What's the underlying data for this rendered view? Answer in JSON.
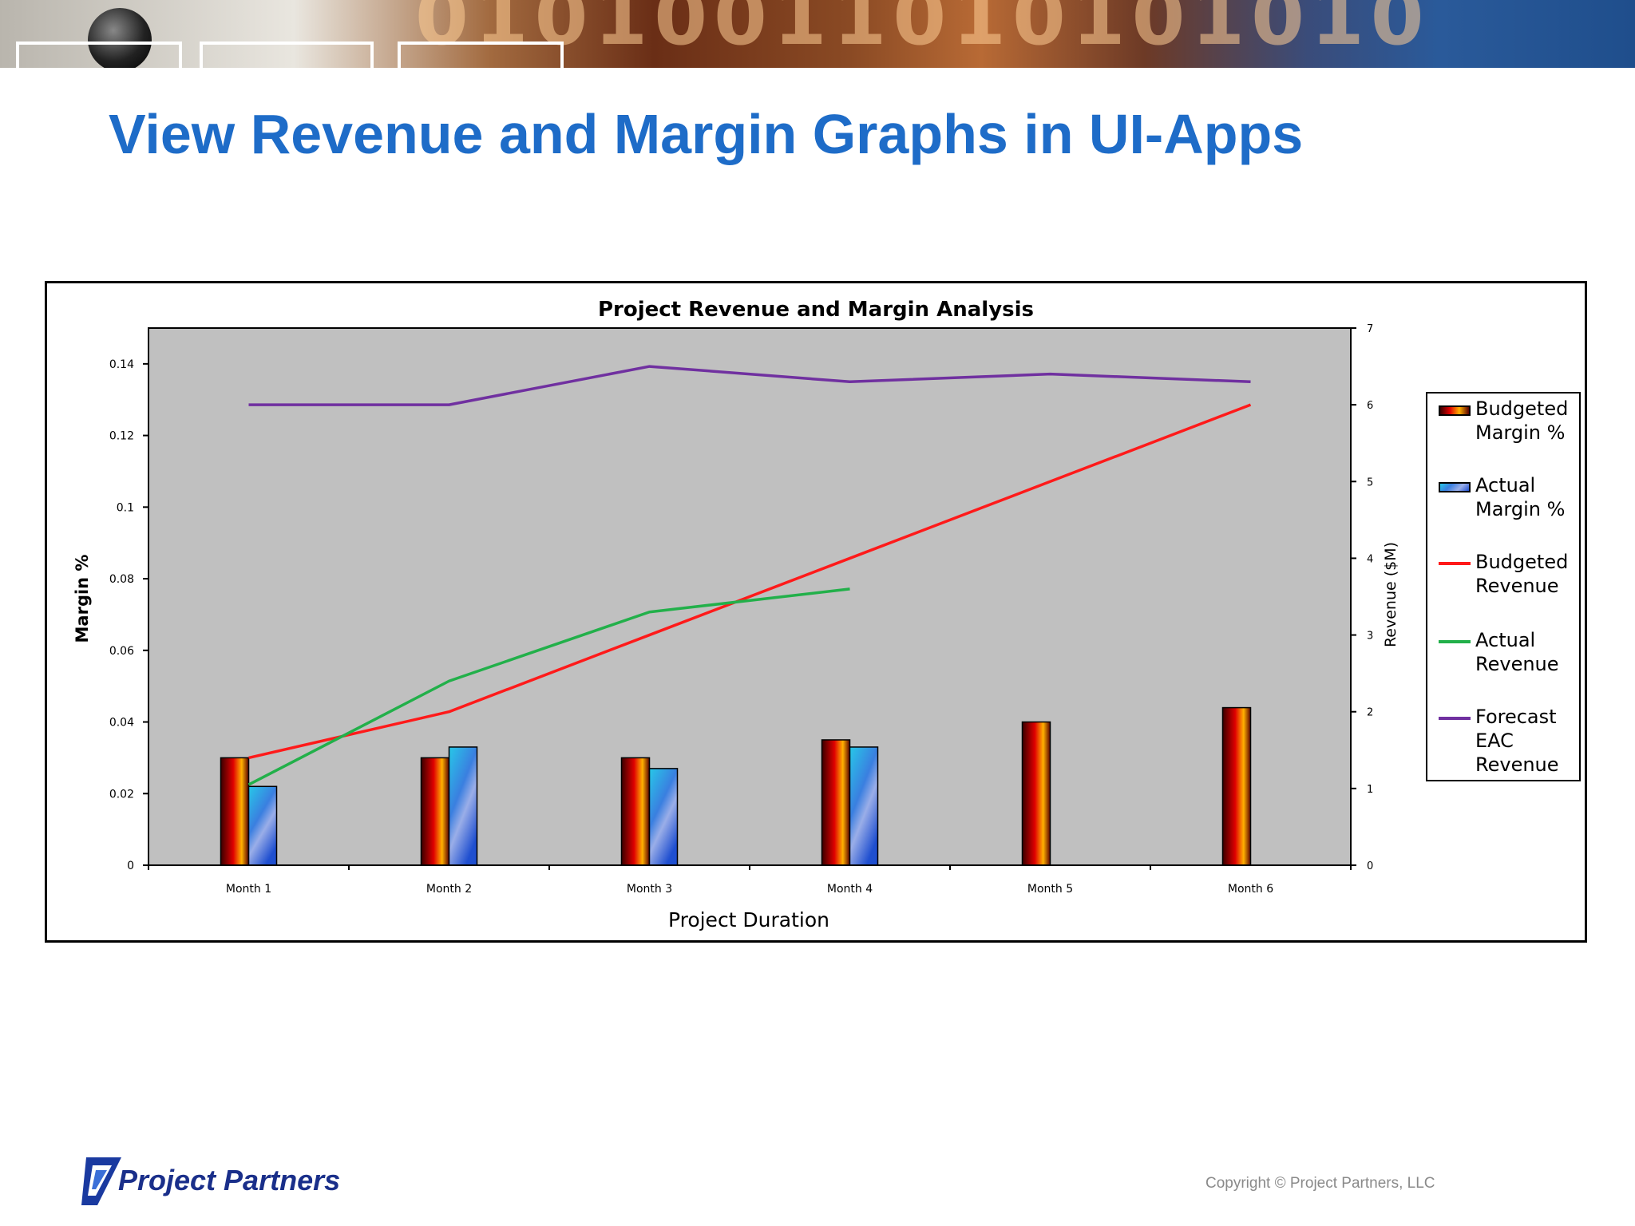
{
  "banner": {
    "digits": "01010011010101010"
  },
  "slide": {
    "title": "View Revenue and Margin Graphs in UI-Apps",
    "copyright": "Copyright © Project Partners, LLC",
    "logo_text": "Project Partners"
  },
  "colors": {
    "title": "#1e6cc8",
    "plot_bg": "#c0c0c0",
    "budgeted_revenue": "#ff1a1a",
    "actual_revenue": "#22b04a",
    "forecast_eac_revenue": "#7030a0",
    "budgeted_margin": "#c00000",
    "actual_margin": "#2f7fe0"
  },
  "chart_data": {
    "type": "bar",
    "title": "Project Revenue and Margin Analysis",
    "xlabel": "Project Duration",
    "ylabel": "Margin %",
    "ylabel_right": "Revenue ($M)",
    "categories": [
      "Month 1",
      "Month 2",
      "Month 3",
      "Month 4",
      "Month 5",
      "Month 6"
    ],
    "ylim": [
      0,
      0.15
    ],
    "yticks": [
      "0",
      "0.02",
      "0.04",
      "0.06",
      "0.08",
      "0.1",
      "0.12",
      "0.14"
    ],
    "ylim_right": [
      0,
      7
    ],
    "yticks_right": [
      "0",
      "1",
      "2",
      "3",
      "4",
      "5",
      "6",
      "7"
    ],
    "legend_position": "right",
    "grid": false,
    "series": [
      {
        "name": "Budgeted Margin %",
        "type": "bar",
        "axis": "left",
        "values": [
          0.03,
          0.03,
          0.03,
          0.035,
          0.04,
          0.044
        ]
      },
      {
        "name": "Actual Margin %",
        "type": "bar",
        "axis": "left",
        "values": [
          0.022,
          0.033,
          0.027,
          0.033,
          null,
          null
        ]
      },
      {
        "name": "Budgeted Revenue",
        "type": "line",
        "axis": "right",
        "values": [
          1.4,
          2.0,
          3.0,
          4.0,
          5.0,
          6.0
        ]
      },
      {
        "name": "Actual Revenue",
        "type": "line",
        "axis": "right",
        "values": [
          1.05,
          2.4,
          3.3,
          3.6,
          null,
          null
        ]
      },
      {
        "name": "Forecast EAC Revenue",
        "type": "line",
        "axis": "right",
        "values": [
          6.0,
          6.0,
          6.5,
          6.3,
          6.4,
          6.3
        ]
      }
    ]
  }
}
